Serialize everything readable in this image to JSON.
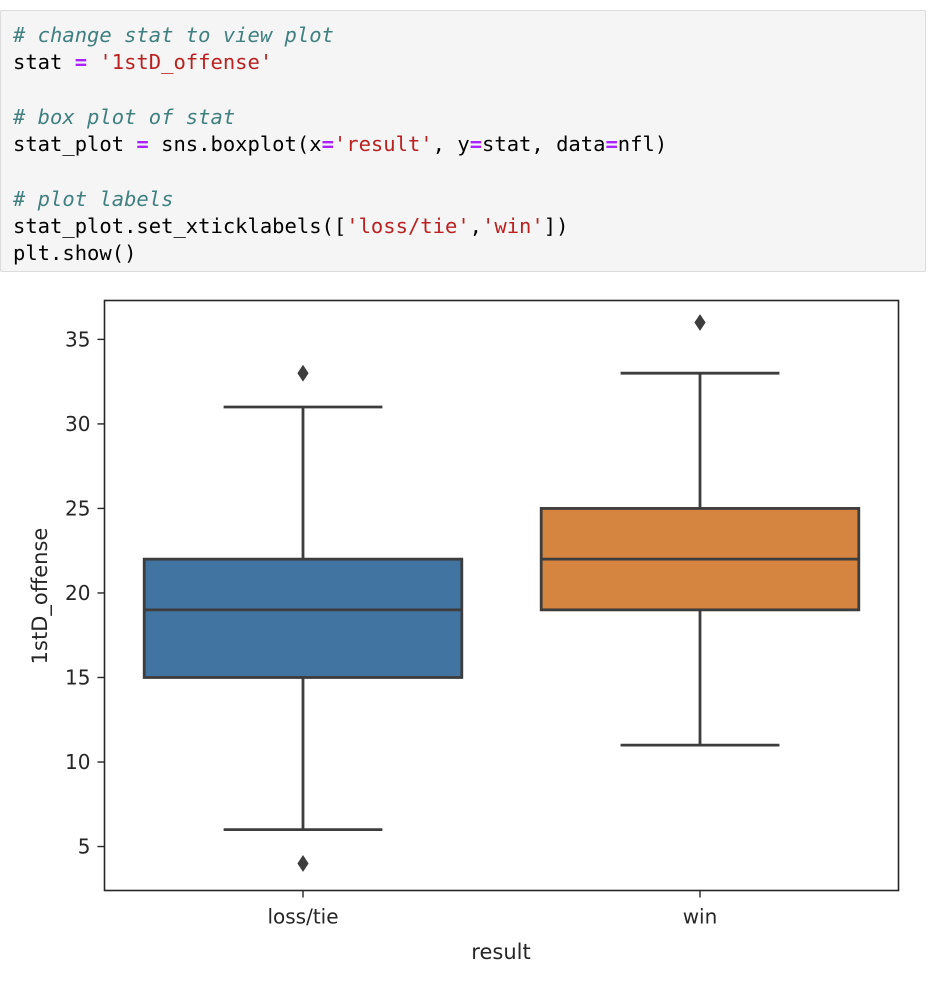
{
  "code_cell": {
    "lines": [
      [
        {
          "t": "comment",
          "v": "# change stat to view plot"
        }
      ],
      [
        {
          "t": "plain",
          "v": "stat "
        },
        {
          "t": "op",
          "v": "="
        },
        {
          "t": "plain",
          "v": " "
        },
        {
          "t": "str",
          "v": "'1stD_offense'"
        }
      ],
      [],
      [
        {
          "t": "comment",
          "v": "# box plot of stat"
        }
      ],
      [
        {
          "t": "plain",
          "v": "stat_plot "
        },
        {
          "t": "op",
          "v": "="
        },
        {
          "t": "plain",
          "v": " sns.boxplot(x"
        },
        {
          "t": "op",
          "v": "="
        },
        {
          "t": "str",
          "v": "'result'"
        },
        {
          "t": "plain",
          "v": ", y"
        },
        {
          "t": "op",
          "v": "="
        },
        {
          "t": "plain",
          "v": "stat, data"
        },
        {
          "t": "op",
          "v": "="
        },
        {
          "t": "plain",
          "v": "nfl)"
        }
      ],
      [],
      [
        {
          "t": "comment",
          "v": "# plot labels"
        }
      ],
      [
        {
          "t": "plain",
          "v": "stat_plot.set_xticklabels(["
        },
        {
          "t": "str",
          "v": "'loss/tie'"
        },
        {
          "t": "plain",
          "v": ","
        },
        {
          "t": "str",
          "v": "'win'"
        },
        {
          "t": "plain",
          "v": "])"
        }
      ],
      [
        {
          "t": "plain",
          "v": "plt.show()"
        }
      ]
    ]
  },
  "chart_data": {
    "type": "box",
    "xlabel": "result",
    "ylabel": "1stD_offense",
    "ylim": [
      2.4,
      37.3
    ],
    "yticks": [
      5,
      10,
      15,
      20,
      25,
      30,
      35
    ],
    "categories": [
      "loss/tie",
      "win"
    ],
    "boxes": [
      {
        "category": "loss/tie",
        "whisker_low": 6,
        "q1": 15,
        "median": 19,
        "q3": 22,
        "whisker_high": 31,
        "outliers": [
          4,
          33
        ],
        "color": "#4274a1"
      },
      {
        "category": "win",
        "whisker_low": 11,
        "q1": 19,
        "median": 22,
        "q3": 25,
        "whisker_high": 33,
        "outliers": [
          36
        ],
        "color": "#d58540"
      }
    ],
    "grid": false,
    "legend": "none"
  }
}
